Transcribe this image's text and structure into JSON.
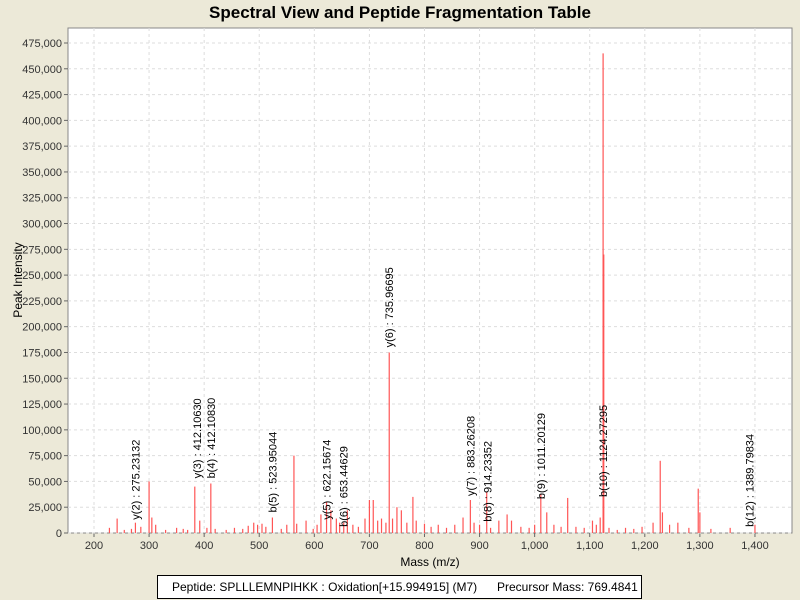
{
  "chart_data": {
    "type": "bar",
    "title": "Spectral View and Peptide Fragmentation Table",
    "xlabel": "Mass (m/z)",
    "ylabel": "Peak Intensity",
    "xlim": [
      155,
      1470
    ],
    "ylim": [
      0,
      490000
    ],
    "xticks": [
      "200",
      "300",
      "400",
      "500",
      "600",
      "700",
      "800",
      "900",
      "1,000",
      "1,100",
      "1,200",
      "1,300",
      "1,400"
    ],
    "yticks": [
      "0",
      "25,000",
      "50,000",
      "75,000",
      "100,000",
      "125,000",
      "150,000",
      "175,000",
      "200,000",
      "225,000",
      "250,000",
      "275,000",
      "300,000",
      "325,000",
      "350,000",
      "375,000",
      "400,000",
      "425,000",
      "450,000",
      "475,000"
    ],
    "grid": true,
    "peak_color": "#ff5555",
    "peaks": [
      [
        228,
        5000
      ],
      [
        242,
        14000
      ],
      [
        255,
        3000
      ],
      [
        268,
        4000
      ],
      [
        275.2,
        10000
      ],
      [
        285,
        6000
      ],
      [
        300,
        50000
      ],
      [
        305,
        15000
      ],
      [
        312,
        8000
      ],
      [
        330,
        3000
      ],
      [
        350,
        5000
      ],
      [
        362,
        4000
      ],
      [
        370,
        3000
      ],
      [
        383,
        45000
      ],
      [
        392,
        12000
      ],
      [
        405,
        5000
      ],
      [
        412.1,
        48000
      ],
      [
        420,
        4000
      ],
      [
        440,
        3000
      ],
      [
        455,
        5000
      ],
      [
        470,
        4000
      ],
      [
        480,
        7000
      ],
      [
        490,
        10000
      ],
      [
        497,
        8000
      ],
      [
        505,
        9000
      ],
      [
        512,
        6000
      ],
      [
        523.9,
        15000
      ],
      [
        540,
        4000
      ],
      [
        550,
        8000
      ],
      [
        563,
        75000
      ],
      [
        568,
        9000
      ],
      [
        585,
        12000
      ],
      [
        598,
        4000
      ],
      [
        605,
        8000
      ],
      [
        612,
        18000
      ],
      [
        622.2,
        30000
      ],
      [
        630,
        22000
      ],
      [
        640,
        14000
      ],
      [
        646,
        10000
      ],
      [
        653.4,
        10000
      ],
      [
        660,
        22000
      ],
      [
        670,
        8000
      ],
      [
        680,
        6000
      ],
      [
        692,
        14000
      ],
      [
        700,
        32000
      ],
      [
        707,
        32000
      ],
      [
        715,
        12000
      ],
      [
        722,
        14000
      ],
      [
        730,
        10000
      ],
      [
        736,
        175000
      ],
      [
        742,
        14000
      ],
      [
        750,
        25000
      ],
      [
        758,
        22000
      ],
      [
        768,
        10000
      ],
      [
        779,
        35000
      ],
      [
        785,
        12000
      ],
      [
        800,
        9000
      ],
      [
        812,
        6000
      ],
      [
        825,
        8000
      ],
      [
        840,
        5000
      ],
      [
        855,
        8000
      ],
      [
        870,
        15000
      ],
      [
        883.3,
        32000
      ],
      [
        890,
        10000
      ],
      [
        900,
        8000
      ],
      [
        913,
        40000
      ],
      [
        920,
        5000
      ],
      [
        935,
        12000
      ],
      [
        950,
        18000
      ],
      [
        958,
        12000
      ],
      [
        975,
        6000
      ],
      [
        990,
        5000
      ],
      [
        1000,
        8000
      ],
      [
        1011.2,
        38000
      ],
      [
        1022,
        20000
      ],
      [
        1035,
        8000
      ],
      [
        1048,
        6000
      ],
      [
        1060,
        34000
      ],
      [
        1075,
        6000
      ],
      [
        1090,
        5000
      ],
      [
        1105,
        12000
      ],
      [
        1112,
        8000
      ],
      [
        1119,
        15000
      ],
      [
        1124.3,
        465000
      ],
      [
        1125.5,
        270000
      ],
      [
        1135,
        5000
      ],
      [
        1150,
        3000
      ],
      [
        1165,
        5000
      ],
      [
        1180,
        4000
      ],
      [
        1195,
        6000
      ],
      [
        1215,
        10000
      ],
      [
        1228,
        70000
      ],
      [
        1232,
        20000
      ],
      [
        1245,
        8000
      ],
      [
        1260,
        10000
      ],
      [
        1280,
        5000
      ],
      [
        1297,
        43000
      ],
      [
        1300,
        20000
      ],
      [
        1320,
        4000
      ],
      [
        1355,
        5000
      ],
      [
        1400,
        8000
      ]
    ],
    "annotations": [
      {
        "mz": 275.2,
        "at": 10000,
        "label": "y(2) : 275.23132"
      },
      {
        "mz": 412.1,
        "at": 50000,
        "label": "b(4) : 412.10830"
      },
      {
        "mz": 412.1,
        "at": 50000,
        "label": "y(3) : 412.10630"
      },
      {
        "mz": 523.9,
        "at": 17000,
        "label": "b(5) : 523.95044"
      },
      {
        "mz": 622.2,
        "at": 10000,
        "label": "y(5) : 622.15674"
      },
      {
        "mz": 653.4,
        "at": 3000,
        "label": "b(6) : 653.44629"
      },
      {
        "mz": 736,
        "at": 177000,
        "label": "y(6) : 735.96695"
      },
      {
        "mz": 883.3,
        "at": 33000,
        "label": "y(7) : 883.26208"
      },
      {
        "mz": 914.2,
        "at": 8000,
        "label": "b(8) : 914.23352"
      },
      {
        "mz": 1011.2,
        "at": 30000,
        "label": "b(9) : 1011.20129"
      },
      {
        "mz": 1124.3,
        "at": 32000,
        "label": "b(10) : 1124.27295"
      },
      {
        "mz": 1389.8,
        "at": 3000,
        "label": "b(12) : 1389.79834"
      }
    ]
  },
  "footer": {
    "peptide": "Peptide: SPLLLEMNPIHKK : Oxidation[+15.994915] (M7)",
    "precursor": "Precursor Mass: 769.4841"
  }
}
